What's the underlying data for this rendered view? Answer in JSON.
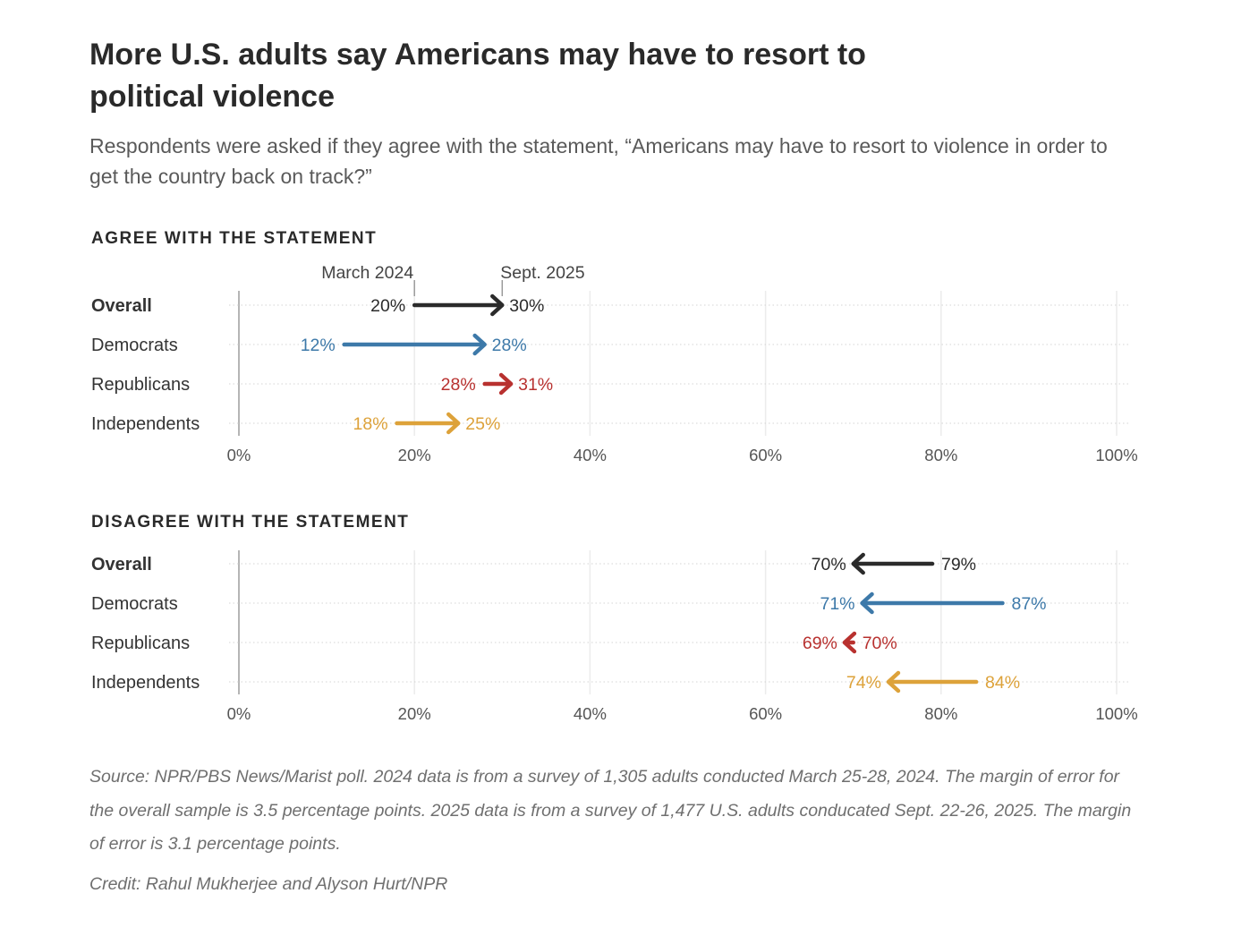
{
  "header": {
    "title": "More U.S. adults say Americans may have to resort to political violence",
    "subtitle": "Respondents were asked if they agree with the statement, “Americans may have to resort to violence in order to get the country back on track?”"
  },
  "chart_data": [
    {
      "type": "arrow",
      "id": "agree",
      "title": "AGREE WITH THE STATEMENT",
      "from_label": "March 2024",
      "to_label": "Sept. 2025",
      "xlim": [
        0,
        100
      ],
      "ticks": [
        0,
        20,
        40,
        60,
        80,
        100
      ],
      "tick_labels": [
        "0%",
        "20%",
        "40%",
        "60%",
        "80%",
        "100%"
      ],
      "rows": [
        {
          "name": "Overall",
          "from": 20,
          "to": 30,
          "from_label": "20%",
          "to_label": "30%",
          "color": "#2b2b2b",
          "bold": true
        },
        {
          "name": "Democrats",
          "from": 12,
          "to": 28,
          "from_label": "12%",
          "to_label": "28%",
          "color": "#3d79a9",
          "bold": false
        },
        {
          "name": "Republicans",
          "from": 28,
          "to": 31,
          "from_label": "28%",
          "to_label": "31%",
          "color": "#b8312f",
          "bold": false
        },
        {
          "name": "Independents",
          "from": 18,
          "to": 25,
          "from_label": "18%",
          "to_label": "25%",
          "color": "#dda23a",
          "bold": false
        }
      ]
    },
    {
      "type": "arrow",
      "id": "disagree",
      "title": "DISAGREE WITH THE STATEMENT",
      "xlim": [
        0,
        100
      ],
      "ticks": [
        0,
        20,
        40,
        60,
        80,
        100
      ],
      "tick_labels": [
        "0%",
        "20%",
        "40%",
        "60%",
        "80%",
        "100%"
      ],
      "rows": [
        {
          "name": "Overall",
          "from": 79,
          "to": 70,
          "from_label": "79%",
          "to_label": "70%",
          "color": "#2b2b2b",
          "bold": true
        },
        {
          "name": "Democrats",
          "from": 87,
          "to": 71,
          "from_label": "87%",
          "to_label": "71%",
          "color": "#3d79a9",
          "bold": false
        },
        {
          "name": "Republicans",
          "from": 70,
          "to": 69,
          "from_label": "70%",
          "to_label": "69%",
          "color": "#b8312f",
          "bold": false
        },
        {
          "name": "Independents",
          "from": 84,
          "to": 74,
          "from_label": "84%",
          "to_label": "74%",
          "color": "#dda23a",
          "bold": false
        }
      ]
    }
  ],
  "footer": {
    "source": "Source: NPR/PBS News/Marist poll. 2024 data is from a survey of 1,305 adults conducted March 25-28, 2024. The margin of error for the overall sample is 3.5 percentage points. 2025 data is from a survey of 1,477 U.S. adults conducated Sept. 22-26, 2025. The margin of error is 3.1 percentage points.",
    "credit": "Credit: Rahul Mukherjee and Alyson Hurt/NPR"
  }
}
